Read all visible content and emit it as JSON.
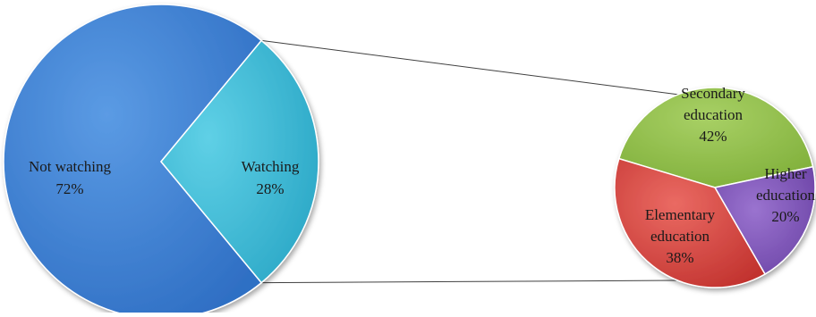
{
  "chart_data": [
    {
      "type": "pie",
      "categories": [
        "Not watching",
        "Watching"
      ],
      "values": [
        72,
        28
      ],
      "labels": [
        "Not watching",
        "Watching"
      ],
      "percent_labels": [
        "72%",
        "28%"
      ],
      "colors": [
        "#3d7fd3",
        "#3fbbd6"
      ],
      "exploded_slice": "Watching"
    },
    {
      "type": "pie",
      "categories": [
        "Secondary education",
        "Higher education",
        "Elementary education"
      ],
      "values": [
        42,
        20,
        38
      ],
      "labels": [
        [
          "Secondary",
          "education"
        ],
        [
          "Higher",
          "education"
        ],
        [
          "Elementary",
          "education"
        ]
      ],
      "percent_labels": [
        "42%",
        "20%",
        "38%"
      ],
      "colors": [
        "#8fbd45",
        "#7c52b5",
        "#d94b45"
      ],
      "breakdown_of": "Watching"
    }
  ]
}
